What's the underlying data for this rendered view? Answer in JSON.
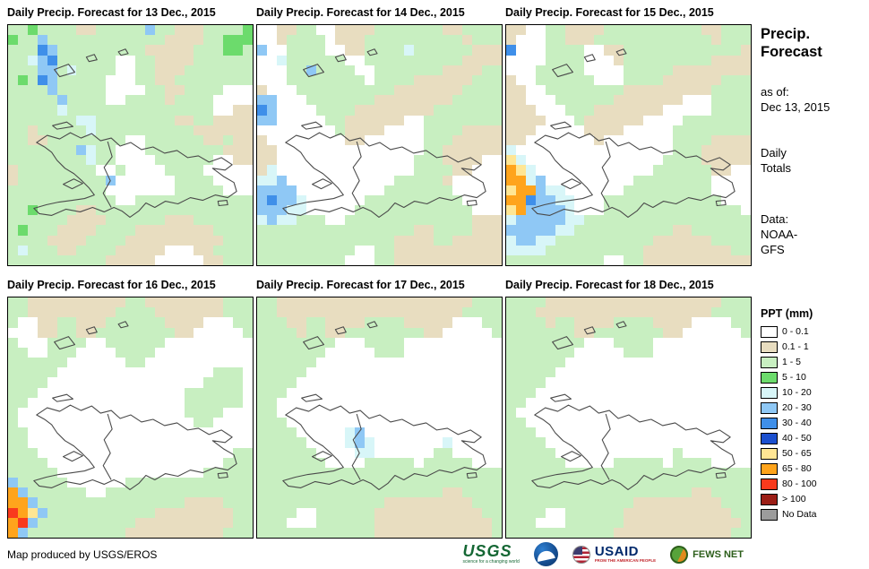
{
  "panels": [
    {
      "title": "Daily Precip. Forecast for 13 Dec., 2015",
      "grid": [
        "ggGggggttgggggbggtttggggG",
        "GggbggggggggggggttttggGGG",
        "gggBbgggggggggtttttgggGGg",
        "ggcbBggggggwwggttttgggggg",
        "gggbbgcggggwwggtttggggggg",
        "gGgBbgggggwwwggttgggggggg",
        "ggggbgggggwwwwggttggggwww",
        "gggggbggggwwggggtggggwwww",
        "gggggcgggggggggggggggwwtt",
        "gggggggccggggggggttggtttt",
        "ggtgggggcggggggggggtttttt",
        "ggttggggggggwwggggggttgtt",
        "gggggggbcggwwwggggggggttt",
        "ggggggggcggwwwwggggggwwtt",
        "tggggggggwwgwwwwggggwwwww",
        "tgggggggggbwwwwwwggggwwww",
        "ggggggggggwwwwwwwgggggwww",
        "gggggggggggwwgggggggggggg",
        "ggGggggttgggggggggggggg1g",
        "ggggggttttggggggtttgggggg",
        "gGgggttttggggttttttttgggg",
        "ggggttttggggttttttttttggg",
        "gcgggttggggtttttwwwttgggg",
        "ggggggggggtttttwwwwwttggg"
      ]
    },
    {
      "title": "Daily Precip. Forecast for 14 Dec., 2015",
      "grid": [
        "wwttggwwttttgggggggttgggg",
        "wwtggggwtttggggggggggtggg",
        "bwwggggwwttggggcggggggttt",
        "wwcggggggwwggggggggggtttt",
        "wwwggbggggwwgggggggttttgg",
        "wwwggggggggwggggttttttggg",
        "twwwggggggggggtttttttgggg",
        "bbwwwgggggggttttttttggggg",
        "Bbwwwwggggttttttttggggggg",
        "bbwwwwwggttttttwwgggggggg",
        "wwwwwwwwgttttwwwwggggtttt",
        "twwwwwwwwttwwwwwwgggttttt",
        "ttwwwwwwwwwwwwwwwggtttttt",
        "ttwwwwwwwwwwwwwwgggttttww",
        "tcwwwwwwwwwwwwwwggggttwww",
        "ccbwwwwwwwwwwwgggggtwwwww",
        "bbbbwwwwwwwwwgggggggwwwww",
        "bBbbcwwwwwwggggggggggwwww",
        "bbbccwwwwwggggggggggggwww",
        "cbccgggwwgggggggggggggttt",
        "ggggggggggggggggttggggttt",
        "ggggggggggggggttttggttttt",
        "ggggggggggwwggttttttttttt",
        "gggggggggwwwggttttttttttt"
      ]
    },
    {
      "title": "Daily Precip. Forecast for 15 Dec., 2015",
      "grid": [
        "ttwwggttttggggggggggttggg",
        "twwwggtttggggggggggggtggg",
        "Bwwwggggwwttggggggggggggt",
        "wwwwggggwwwtgggggggggtttt",
        "wwwgggggwwwwgggggtttttttt",
        "twwggggggwwwggggttttttggg",
        "ttwwggggggggtttttttttgggg",
        "ttwwwggggggtttttttwwwgggg",
        "tttwwwgggtttttttwwwwwgggg",
        "ttttwwwgttttttwwwwggggggg",
        "tttwwwwwttttwwwwwgggggggg",
        "ttwwwwwwwtwwwwwwwggggtttt",
        "cwwwwwwwwwwwwwwwwgggttttt",
        "ycwwwwwwwwwwwwwwggggttttt",
        "oycwwwwwwwwwwwwggggggttwww",
        "oocbwwwwwwwwwggggggggwwww",
        "yoobccwwwwwwgggggggggwwww",
        "ooBbbccwwwggggggggggggwww",
        "yobbbbcwwwggggggggggggggw",
        "cbbbbbccggggggggggggggggg",
        "bbbbbccggggggggggttgggggg",
        "cbbccggggggggggttttttgggg",
        "ccccggggggggggtttttttttgg",
        "ggggggggggwwggttttttttttt"
      ]
    },
    {
      "title": "Daily Precip. Forecast for 16 Dec., 2015",
      "grid": [
        "ggttttttttttggttttttttggg",
        "ggtttttttttggggtttttttggg",
        "gwwttggtttggggggttttwwwgg",
        "wwwttggttggggggggttwwwwwg",
        "gwwwggggwwggggggwwwwwwwww",
        "ggwwgggwwwwggggwwwwwwwwww",
        "ggggggwwwwwwggwwwwwwwwwww",
        "gggggwwwwwwwwwwwwwwwwgggw",
        "ggggwwwwwwwwwwwwwwwwggggw",
        "gggwwwwwwwwwwwwwwwggggggw",
        "ggwwwwwwwwwwwwwwwwggggggw",
        "gwwwwwwwwwwwwwwwwwggggwww",
        "gwwwwwwwwwwwwwwwwwwggwwww",
        "ggwwwwwwwwwwwwwwwwwwwwwww",
        "ggwwwwwwwwwwwwwwwwwwwwwww",
        "gggwwwwwwwwwwwwwwwwwwwwgg",
        "ggggwwwwwwwwwwwwwwwwwwggg",
        "gggggwwwwwwwwwwwwwwwggggg",
        "bgggggwwwwwwggggggggggggg",
        "obggggggwwggggggggggggggg",
        "oobgggggggggggggggttttggg",
        "roybgggggggggggttttttttgg",
        "orbggggggggggttttttttttgg",
        "obggggggggggttttttttttggg"
      ]
    },
    {
      "title": "Daily Precip. Forecast for 17 Dec., 2015",
      "grid": [
        "ggttttttttttttttttttttggg",
        "ggtttttttttttttttttttgggg",
        "gggttggttttggggtttttwwwgg",
        "ggggtggttggggggggttwwwwwg",
        "ggggggggwwwggggwwwwwwwwww",
        "gggggggwwwwwgggwwwwwwwwww",
        "ggggggwwwwwwwwwwwwwwwwwww",
        "gggggwwwwwwwwwwwwwwwwwwww",
        "ggggwwwwwwwwwwwwwwwwwwwww",
        "gggwwwwwwwwwwwwwwwwwwwwww",
        "ggwwwwwwwwwwwwwwwwwwwwwww",
        "ggwwwwwwwwwwwwwwwwwwwwwww",
        "gggwwwwwwwwwwwwwwwwwwwwww",
        "ggggwwwwwcbwwwwwwwwwwwwww",
        "gggggwwwwcbcwwwwwwwcwwwww",
        "ggggggwwwwccwwwwwwggwwwww",
        "gggggggwwwwgggggwgggggwww",
        "ggggggggggggggggggggggggg",
        "ggggggggggggggggggggggggg",
        "gggggggggggggggggggttgggg",
        "gggggggggggggtttttttttggg",
        "ggggwwggggggtttttttttttgg",
        "gggwwwggggggttttttttttttg",
        "ggggggggggggttttttttttttg"
      ]
    },
    {
      "title": "Daily Precip. Forecast for 18 Dec., 2015",
      "grid": [
        "ggggttttttttttttttttttggg",
        "gggttttttttttttttttttgggg",
        "ggggtggttttggggttttwwwwgg",
        "gggggggttgggggggttwwwwwwg",
        "ggggggggwwwggggwwwwwwwwww",
        "gggggggwwwwwgggwwwwwwwwww",
        "ggggggwwwwwwwwwwwwwwwwwww",
        "gggggwwwwwwwwwwwwwwwwwwww",
        "ggggwwwwwwwwwwwwwwwwwwwww",
        "gggwwwwwwwwwwwwwwwwwwwwww",
        "ggwwwwwwwwwwwwwwwwwwwwwww",
        "gwwwwwwwwwwwwwwwwwwwwwwww",
        "ggwwwwwwwwwwwwwwwwwwwwwww",
        "gggwwwwwwwwwwwwwwwwwwwwww",
        "ggggwwwwwwwwwwwwwwwwwwwww",
        "gggggwwwwwwwwwwwwgwwwwwww",
        "ggggggwwwwwgggggwggggwwww",
        "ggggggggggggggggggggggggg",
        "ggggggggggggggggggggggggg",
        "gggggggggggggggggggttgggg",
        "gggggggggggggtttttttttggg",
        "ggggwwggggggtttttttttttgg",
        "gggwwwggggggttttttttttttg",
        "gggggggggggttttttttttttgg"
      ]
    }
  ],
  "palette": {
    "w": "#FFFFFF",
    "t": "#E8DDC0",
    "g": "#C8EFC1",
    "G": "#6CDB6C",
    "c": "#D8F6F8",
    "b": "#8FC8F5",
    "B": "#3F8FE9",
    "N": "#1C50CE",
    "y": "#FFE694",
    "o": "#FFA41C",
    "r": "#F93A1D",
    "R": "#9B1E16",
    "x": "#9C9C9C",
    "1": "#C8EFC1"
  },
  "sidebar": {
    "title_line1": "Precip.",
    "title_line2": "Forecast",
    "as_of_label": "as of:",
    "as_of_date": "Dec 13, 2015",
    "totals_line1": "Daily",
    "totals_line2": "Totals",
    "data_label": "Data:",
    "data_line1": "NOAA-",
    "data_line2": "GFS"
  },
  "legend": {
    "title": "PPT (mm)",
    "entries": [
      {
        "label": "0 - 0.1",
        "color": "#FFFFFF"
      },
      {
        "label": "0.1 - 1",
        "color": "#E8DDC0"
      },
      {
        "label": "1 - 5",
        "color": "#C8EFC1"
      },
      {
        "label": "5 - 10",
        "color": "#6CDB6C"
      },
      {
        "label": "10 - 20",
        "color": "#D8F6F8"
      },
      {
        "label": "20 - 30",
        "color": "#8FC8F5"
      },
      {
        "label": "30 - 40",
        "color": "#3F8FE9"
      },
      {
        "label": "40 - 50",
        "color": "#1C50CE"
      },
      {
        "label": "50 - 65",
        "color": "#FFE694"
      },
      {
        "label": "65 - 80",
        "color": "#FFA41C"
      },
      {
        "label": "80 - 100",
        "color": "#F93A1D"
      },
      {
        "label": "> 100",
        "color": "#9B1E16"
      },
      {
        "label": "No Data",
        "color": "#9C9C9C"
      }
    ]
  },
  "footer": {
    "credit": "Map produced by USGS/EROS",
    "logos": [
      {
        "name": "USGS",
        "tagline": "science for a changing world"
      },
      {
        "name": "NOAA"
      },
      {
        "name": "USAID",
        "tagline": "FROM THE AMERICAN PEOPLE"
      },
      {
        "name": "FEWS NET"
      }
    ]
  }
}
